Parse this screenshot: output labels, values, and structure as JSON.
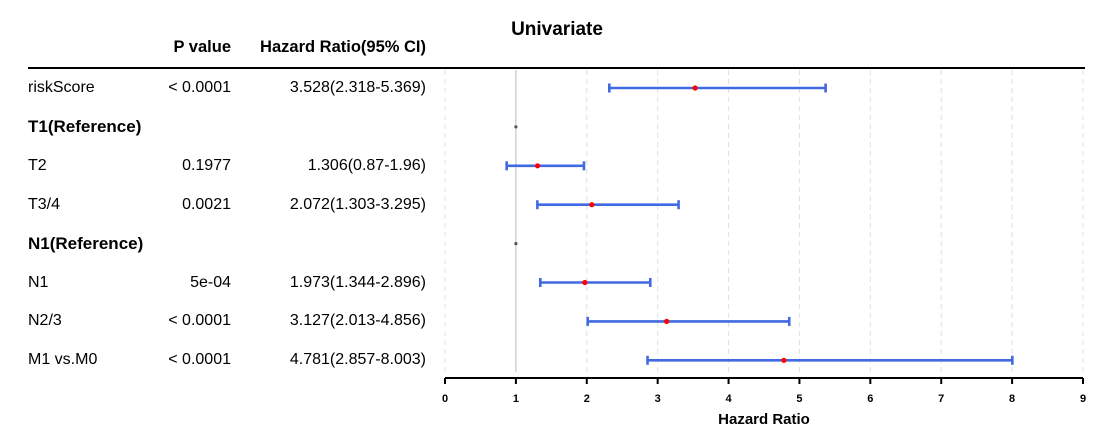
{
  "chart_data": {
    "type": "forest",
    "title": "Univariate",
    "columns": {
      "p_value": "P value",
      "hazard_ratio": "Hazard Ratio(95% CI)"
    },
    "xlabel": "Hazard Ratio",
    "xlim": [
      0,
      9
    ],
    "xticks": [
      "0",
      "1",
      "2",
      "3",
      "4",
      "5",
      "6",
      "7",
      "8",
      "9"
    ],
    "reference_line": 1,
    "grid": "dashed vertical",
    "rows": [
      {
        "label": "riskScore",
        "p": "< 0.0001",
        "hr_text": "3.528(2.318-5.369)",
        "hr": 3.528,
        "lo": 2.318,
        "hi": 5.369,
        "reference": false
      },
      {
        "label": "T1(Reference)",
        "p": "",
        "hr_text": "",
        "hr": 1,
        "lo": 1,
        "hi": 1,
        "reference": true
      },
      {
        "label": "T2",
        "p": "0.1977",
        "hr_text": "1.306(0.87-1.96)",
        "hr": 1.306,
        "lo": 0.87,
        "hi": 1.96,
        "reference": false
      },
      {
        "label": "T3/4",
        "p": "0.0021",
        "hr_text": "2.072(1.303-3.295)",
        "hr": 2.072,
        "lo": 1.303,
        "hi": 3.295,
        "reference": false
      },
      {
        "label": "N1(Reference)",
        "p": "",
        "hr_text": "",
        "hr": 1,
        "lo": 1,
        "hi": 1,
        "reference": true
      },
      {
        "label": "N1",
        "p": "5e-04",
        "hr_text": "1.973(1.344-2.896)",
        "hr": 1.973,
        "lo": 1.344,
        "hi": 2.896,
        "reference": false
      },
      {
        "label": "N2/3",
        "p": "< 0.0001",
        "hr_text": "3.127(2.013-4.856)",
        "hr": 3.127,
        "lo": 2.013,
        "hi": 4.856,
        "reference": false
      },
      {
        "label": "M1 vs.M0",
        "p": "< 0.0001",
        "hr_text": "4.781(2.857-8.003)",
        "hr": 4.781,
        "lo": 2.857,
        "hi": 8.003,
        "reference": false
      }
    ],
    "colors": {
      "ci": "#4169E1",
      "point": "#FF0000",
      "reference_point": "#555555",
      "refline": "#BBBBBB",
      "grid": "#E0E0E0"
    }
  }
}
